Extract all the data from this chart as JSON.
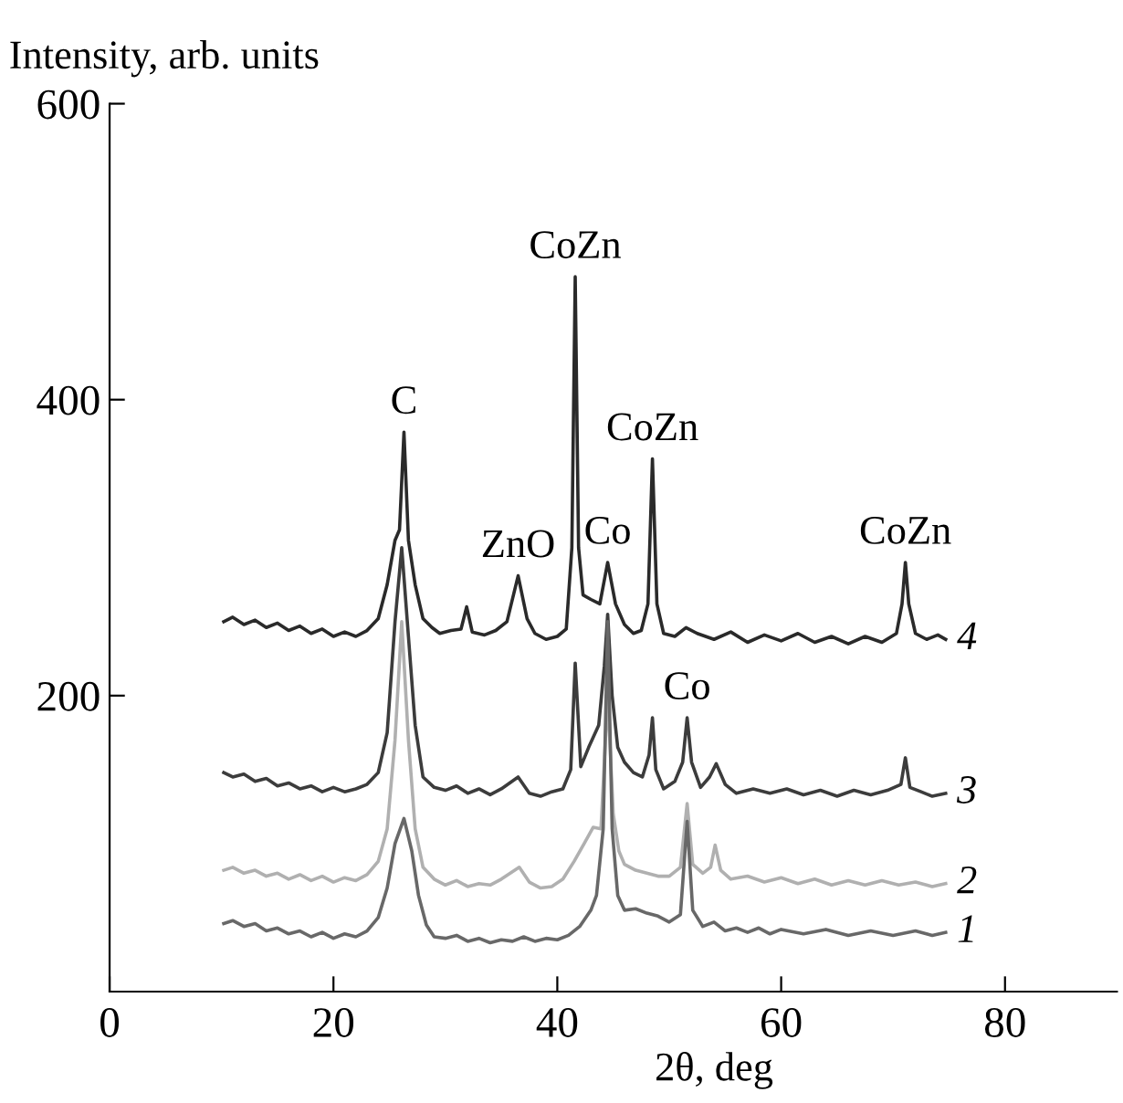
{
  "chart_data": {
    "type": "line",
    "ylabel": "Intensity, arb. units",
    "xlabel": "2θ, deg",
    "xlim": [
      0,
      90
    ],
    "xticks": [
      0,
      20,
      40,
      60,
      80
    ],
    "ylim": [
      0,
      600
    ],
    "yticks": [
      200,
      400,
      600
    ],
    "grid": false,
    "legend": false,
    "marker": "none",
    "line_style": "solid",
    "annotations": [
      {
        "text": "C",
        "x": 26.3,
        "y": 378
      },
      {
        "text": "ZnO",
        "x": 36.5,
        "y": 281
      },
      {
        "text": "CoZn",
        "x": 41.6,
        "y": 483
      },
      {
        "text": "Co",
        "x": 44.5,
        "y": 290
      },
      {
        "text": "CoZn",
        "x": 48.5,
        "y": 360
      },
      {
        "text": "CoZn",
        "x": 71.1,
        "y": 290
      },
      {
        "text": "Co",
        "x": 51.6,
        "y": 185
      }
    ],
    "series": [
      {
        "name": "4",
        "color": "#2a2a2a",
        "x": [
          10.2,
          11,
          12,
          13,
          14,
          15,
          16,
          17,
          18,
          19,
          20,
          21,
          22,
          23,
          24,
          24.8,
          25.5,
          25.9,
          26.3,
          26.7,
          27.3,
          28,
          28.8,
          29.5,
          30.5,
          31.4,
          31.9,
          32.4,
          33.5,
          34.5,
          35.5,
          36.5,
          37.3,
          38,
          39,
          40,
          40.8,
          41.3,
          41.6,
          41.9,
          42.3,
          43,
          43.8,
          44.5,
          45.2,
          46,
          46.8,
          47.5,
          48.1,
          48.5,
          48.9,
          49.5,
          50.5,
          51.5,
          52.5,
          54,
          55.5,
          57,
          58.5,
          60,
          61.5,
          63,
          64.5,
          66,
          67.5,
          69,
          70.3,
          70.8,
          71.1,
          71.4,
          72,
          73,
          74,
          74.7
        ],
        "values": [
          250,
          253,
          248,
          251,
          246,
          249,
          244,
          247,
          242,
          245,
          240,
          243,
          240,
          244,
          252,
          275,
          305,
          312,
          378,
          305,
          275,
          252,
          246,
          242,
          244,
          245,
          260,
          243,
          241,
          244,
          250,
          281,
          252,
          242,
          238,
          240,
          245,
          300,
          483,
          300,
          268,
          265,
          262,
          290,
          262,
          248,
          242,
          244,
          262,
          360,
          262,
          242,
          240,
          246,
          242,
          238,
          243,
          236,
          241,
          237,
          242,
          236,
          240,
          235,
          240,
          236,
          242,
          262,
          290,
          262,
          242,
          238,
          241,
          238
        ]
      },
      {
        "name": "3",
        "color": "#3c3c3c",
        "x": [
          10.2,
          11,
          12,
          13,
          14,
          15,
          16,
          17,
          18,
          19,
          20,
          21,
          22,
          23,
          24,
          24.8,
          25.5,
          26.1,
          26.7,
          27.3,
          28,
          29,
          30,
          31,
          32,
          33,
          34,
          35,
          36.5,
          37.5,
          38.5,
          39.5,
          40.5,
          41.2,
          41.6,
          42.1,
          42.8,
          43.7,
          44.2,
          44.5,
          44.9,
          45.4,
          46,
          46.8,
          47.6,
          48.2,
          48.5,
          48.8,
          49.5,
          50.5,
          51.2,
          51.6,
          52,
          52.8,
          53.6,
          54.2,
          55,
          56,
          57.5,
          59,
          60.5,
          62,
          63.5,
          65,
          66.5,
          68,
          69.5,
          70.7,
          71.1,
          71.5,
          72.5,
          73.5,
          74.7
        ],
        "values": [
          148,
          145,
          147,
          142,
          144,
          139,
          141,
          137,
          139,
          135,
          138,
          135,
          137,
          140,
          148,
          175,
          250,
          300,
          240,
          180,
          145,
          138,
          136,
          139,
          134,
          137,
          133,
          137,
          145,
          134,
          132,
          135,
          137,
          150,
          222,
          152,
          165,
          180,
          220,
          255,
          200,
          165,
          155,
          148,
          145,
          160,
          185,
          150,
          137,
          142,
          155,
          185,
          155,
          138,
          145,
          154,
          140,
          134,
          137,
          134,
          137,
          133,
          136,
          132,
          136,
          133,
          136,
          140,
          158,
          138,
          135,
          132,
          134
        ]
      },
      {
        "name": "2",
        "color": "#b0b0b0",
        "x": [
          10.2,
          11,
          12,
          13,
          14,
          15,
          16,
          17,
          18,
          19,
          20,
          21,
          22,
          23,
          24,
          24.8,
          25.5,
          26.1,
          26.7,
          27.3,
          28,
          29,
          30,
          31,
          32,
          33,
          34,
          35,
          36.6,
          37.5,
          38.5,
          39.5,
          40.5,
          41.5,
          42.4,
          43.2,
          43.9,
          44.5,
          45,
          45.5,
          46,
          47,
          48,
          49,
          50,
          51,
          51.6,
          52.1,
          53,
          53.7,
          54.1,
          54.6,
          55.5,
          57,
          58.5,
          60,
          61.5,
          63,
          64.5,
          66,
          67.5,
          69,
          70.5,
          72,
          73.5,
          74.7
        ],
        "values": [
          82,
          84,
          80,
          82,
          78,
          80,
          76,
          79,
          75,
          78,
          74,
          77,
          75,
          79,
          88,
          110,
          170,
          250,
          170,
          110,
          84,
          76,
          72,
          75,
          71,
          73,
          72,
          76,
          84,
          74,
          70,
          71,
          76,
          88,
          100,
          111,
          110,
          200,
          120,
          95,
          86,
          82,
          80,
          78,
          78,
          84,
          127,
          86,
          80,
          84,
          99,
          82,
          76,
          78,
          74,
          77,
          73,
          76,
          72,
          75,
          72,
          75,
          72,
          74,
          71,
          73
        ]
      },
      {
        "name": "1",
        "color": "#686868",
        "x": [
          10.2,
          11,
          12,
          13,
          14,
          15,
          16,
          17,
          18,
          19,
          20,
          21,
          22,
          23,
          24,
          24.8,
          25.5,
          26.3,
          27,
          27.6,
          28.3,
          29,
          30,
          31,
          32,
          33,
          34,
          35,
          36,
          37,
          38,
          39,
          40,
          41,
          42,
          43,
          43.5,
          44.1,
          44.5,
          44.9,
          45.4,
          46,
          47,
          48,
          49,
          50,
          51,
          51.6,
          52.1,
          53,
          54,
          55,
          56,
          57,
          58,
          59,
          60,
          62,
          64,
          66,
          68,
          70,
          72,
          73.5,
          74.7
        ],
        "values": [
          46,
          48,
          44,
          46,
          41,
          43,
          39,
          41,
          37,
          40,
          36,
          39,
          37,
          41,
          50,
          70,
          100,
          117,
          95,
          65,
          45,
          37,
          36,
          38,
          34,
          36,
          33,
          35,
          34,
          37,
          34,
          36,
          35,
          38,
          44,
          55,
          65,
          110,
          250,
          110,
          65,
          55,
          56,
          53,
          51,
          47,
          52,
          115,
          55,
          44,
          47,
          41,
          43,
          40,
          43,
          39,
          42,
          39,
          42,
          38,
          41,
          38,
          41,
          38,
          40
        ]
      }
    ]
  }
}
